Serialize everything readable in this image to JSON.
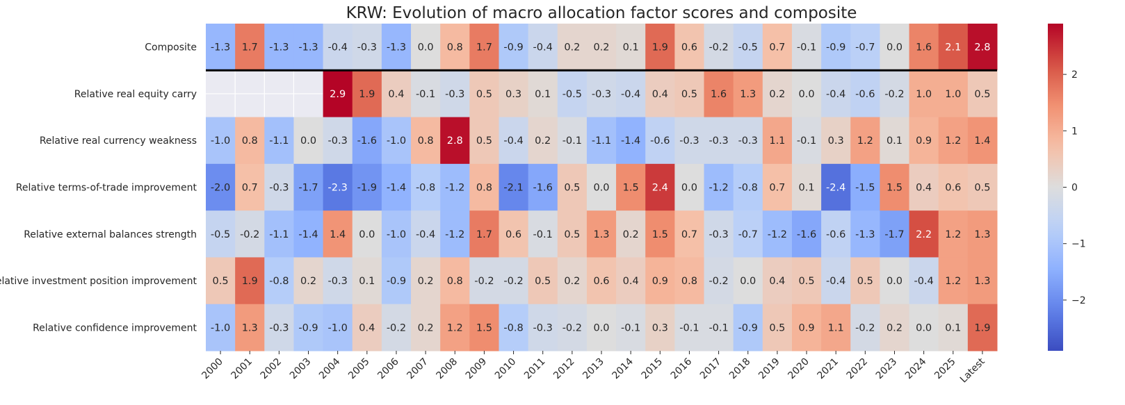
{
  "chart_data": {
    "type": "heatmap",
    "title": "KRW: Evolution of macro allocation factor scores and composite",
    "columns": [
      "2000",
      "2001",
      "2002",
      "2003",
      "2004",
      "2005",
      "2006",
      "2007",
      "2008",
      "2009",
      "2010",
      "2011",
      "2012",
      "2013",
      "2014",
      "2015",
      "2016",
      "2017",
      "2018",
      "2019",
      "2020",
      "2021",
      "2022",
      "2023",
      "2024",
      "2025",
      "Latest"
    ],
    "rows": [
      "Composite",
      "Relative real equity carry",
      "Relative real currency weakness",
      "Relative terms-of-trade improvement",
      "Relative external balances strength",
      "Relative investment position improvement",
      "Relative confidence improvement"
    ],
    "values": [
      [
        -1.3,
        1.7,
        -1.3,
        -1.3,
        -0.4,
        -0.3,
        -1.3,
        0.0,
        0.8,
        1.7,
        -0.9,
        -0.4,
        0.2,
        0.2,
        0.1,
        1.9,
        0.6,
        -0.2,
        -0.5,
        0.7,
        -0.1,
        -0.9,
        -0.7,
        0.0,
        1.6,
        2.1,
        2.8
      ],
      [
        null,
        null,
        null,
        null,
        2.9,
        1.9,
        0.4,
        -0.1,
        -0.3,
        0.5,
        0.3,
        0.1,
        -0.5,
        -0.3,
        -0.4,
        0.4,
        0.5,
        1.6,
        1.3,
        0.2,
        -0.0,
        -0.4,
        -0.6,
        -0.2,
        1.0,
        1.0,
        0.5
      ],
      [
        -1.0,
        0.8,
        -1.1,
        0.0,
        -0.3,
        -1.6,
        -1.0,
        0.8,
        2.8,
        0.5,
        -0.4,
        0.2,
        -0.1,
        -1.1,
        -1.4,
        -0.6,
        -0.3,
        -0.3,
        -0.3,
        1.1,
        -0.1,
        0.3,
        1.2,
        0.1,
        0.9,
        1.2,
        1.4
      ],
      [
        -2.0,
        0.7,
        -0.3,
        -1.7,
        -2.3,
        -1.9,
        -1.4,
        -0.8,
        -1.2,
        0.8,
        -2.1,
        -1.6,
        0.5,
        0.0,
        1.5,
        2.4,
        -0.0,
        -1.2,
        -0.8,
        0.7,
        0.1,
        -2.4,
        -1.5,
        1.5,
        0.4,
        0.6,
        0.5
      ],
      [
        -0.5,
        -0.2,
        -1.1,
        -1.4,
        1.4,
        -0.0,
        -1.0,
        -0.4,
        -1.2,
        1.7,
        0.6,
        -0.1,
        0.5,
        1.3,
        0.2,
        1.5,
        0.7,
        -0.3,
        -0.7,
        -1.2,
        -1.6,
        -0.6,
        -1.3,
        -1.7,
        2.2,
        1.2,
        1.3
      ],
      [
        0.5,
        1.9,
        -0.8,
        0.2,
        -0.3,
        0.1,
        -0.9,
        0.2,
        0.8,
        -0.2,
        -0.2,
        0.5,
        0.2,
        0.6,
        0.4,
        0.9,
        0.8,
        -0.2,
        0.0,
        0.4,
        0.5,
        -0.4,
        0.5,
        0.0,
        -0.4,
        1.2,
        1.3
      ],
      [
        -1.0,
        1.3,
        -0.3,
        -0.9,
        -1.0,
        0.4,
        -0.2,
        0.2,
        1.2,
        1.5,
        -0.8,
        -0.3,
        -0.2,
        0.0,
        -0.1,
        0.3,
        -0.1,
        -0.1,
        -0.9,
        0.5,
        0.9,
        1.1,
        -0.2,
        0.2,
        -0.0,
        0.1,
        1.9
      ]
    ],
    "colormap": "coolwarm_r",
    "vmin": -2.9,
    "vmax": 2.9,
    "colorbar_ticks": [
      -2,
      -1,
      0,
      1,
      2
    ],
    "separator_after_row": "Composite",
    "missing_color": "#eaeaf2"
  }
}
